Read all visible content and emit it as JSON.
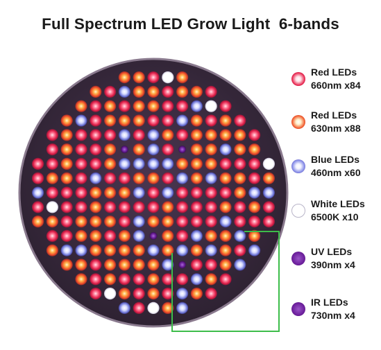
{
  "title": "Full Spectrum LED Grow Light  6-bands",
  "legend": [
    {
      "name": "Red LEDs",
      "spec": "660nm x84",
      "icon": "red-660-led-icon",
      "color": "#e8264f",
      "core": "#ffe2e8"
    },
    {
      "name": "Red LEDs",
      "spec": "630nm x88",
      "icon": "red-630-led-icon",
      "color": "#f25a2c",
      "core": "#fff2cc"
    },
    {
      "name": "Blue LEDs",
      "spec": "460nm x60",
      "icon": "blue-led-icon",
      "color": "#7f86e6",
      "core": "#f2f3ff"
    },
    {
      "name": "White LEDs",
      "spec": "6500K x10",
      "icon": "white-led-icon",
      "color": "#ffffff",
      "core": "#ffffff"
    },
    {
      "name": "UV LEDs",
      "spec": "390nm x4",
      "icon": "uv-led-icon",
      "color": "#6a1d9a",
      "core": "#9a56c8"
    },
    {
      "name": "IR LEDs",
      "spec": "730nm x4",
      "icon": "ir-led-icon",
      "color": "#6a1d9a",
      "core": "#9a56c8"
    }
  ],
  "colors": {
    "panel": "#3a2a3e",
    "panel_edge": "#7a6a7e",
    "callout_line": "#3dbd4a"
  }
}
